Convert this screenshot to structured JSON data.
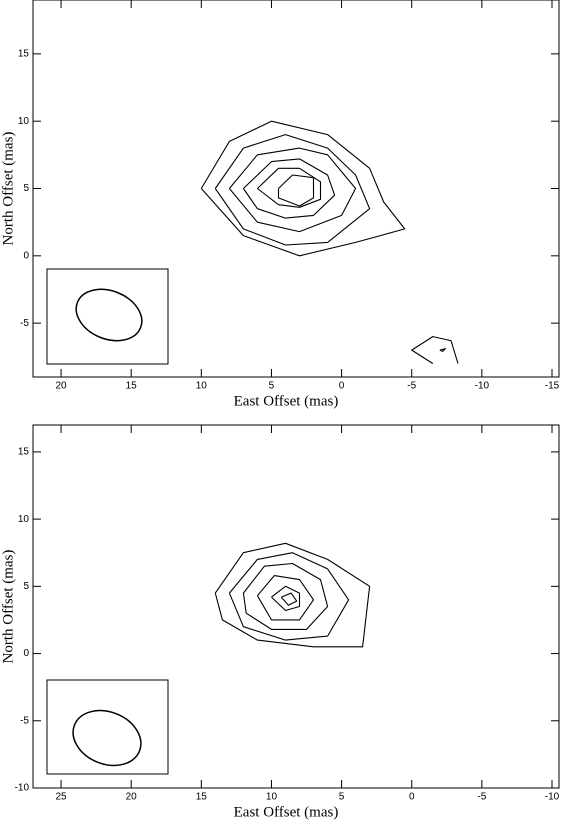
{
  "chart_data": [
    {
      "type": "contour",
      "xlabel": "East Offset (mas)",
      "ylabel": "North Offset (mas)",
      "xlim": [
        22,
        -15.5
      ],
      "ylim": [
        -9,
        19
      ],
      "xticks": [
        20,
        15,
        10,
        5,
        0,
        -5,
        -10,
        -15
      ],
      "yticks": [
        15,
        10,
        5,
        0,
        -5
      ],
      "color": "#000000",
      "contours": [
        {
          "x": [
            10,
            8,
            5,
            1,
            -2,
            -3,
            -4.5,
            -1,
            3,
            7,
            10
          ],
          "y": [
            5,
            8.5,
            10,
            9,
            6.5,
            4,
            2,
            1,
            0,
            1.5,
            5
          ]
        },
        {
          "x": [
            9,
            7,
            4,
            1,
            -1,
            -2,
            1,
            4,
            7,
            9
          ],
          "y": [
            5,
            8,
            9,
            8,
            6,
            3.5,
            1,
            0.8,
            2,
            5
          ]
        },
        {
          "x": [
            8,
            6,
            3,
            1,
            -1,
            0,
            3,
            6,
            8
          ],
          "y": [
            5,
            7.5,
            8,
            7.5,
            5,
            3,
            1.8,
            2.5,
            5
          ]
        },
        {
          "x": [
            7,
            5,
            3,
            1,
            0.5,
            2,
            4,
            6,
            7
          ],
          "y": [
            5,
            7,
            7.2,
            6,
            4.5,
            3,
            2.8,
            3.5,
            5
          ]
        },
        {
          "x": [
            6,
            4.5,
            3,
            1.5,
            1.5,
            3,
            4.5,
            6
          ],
          "y": [
            5,
            6.5,
            6.5,
            5.5,
            4.2,
            3.6,
            3.8,
            5
          ]
        },
        {
          "x": [
            4.5,
            3.5,
            2,
            2,
            3,
            4.5,
            4.5
          ],
          "y": [
            5,
            6,
            5.8,
            4.3,
            3.7,
            4.3,
            5
          ]
        },
        {
          "x": [
            -6.5,
            -5,
            -6.5,
            -7.8,
            -8.3
          ],
          "y": [
            -8,
            -7,
            -6,
            -6.3,
            -8
          ]
        },
        {
          "x": [
            -7,
            -7.4,
            -7.2,
            -7
          ],
          "y": [
            -7,
            -6.9,
            -7.1,
            -7
          ]
        }
      ]
    },
    {
      "type": "contour",
      "xlabel": "East Offset (mas)",
      "ylabel": "North Offset (mas)",
      "xlim": [
        27,
        -10.5
      ],
      "ylim": [
        -10,
        17
      ],
      "xticks": [
        25,
        20,
        15,
        10,
        5,
        0,
        -5,
        -10
      ],
      "yticks": [
        15,
        10,
        5,
        0,
        -5,
        -10
      ],
      "color": "#000000",
      "contours": [
        {
          "x": [
            14,
            12,
            9,
            6,
            3,
            3.5,
            7,
            11,
            13.5,
            14
          ],
          "y": [
            4.5,
            7.5,
            8.2,
            7,
            5,
            0.5,
            0.5,
            1,
            2.5,
            4.5
          ]
        },
        {
          "x": [
            13,
            11,
            8.5,
            6,
            4.5,
            6,
            9,
            12,
            13
          ],
          "y": [
            4.5,
            7,
            7.5,
            6.3,
            4,
            1.3,
            1,
            2,
            4.5
          ]
        },
        {
          "x": [
            12,
            10.5,
            8.5,
            6.5,
            6,
            7.5,
            10,
            11.8,
            12
          ],
          "y": [
            4.5,
            6.5,
            6.7,
            5.5,
            3.5,
            1.8,
            1.8,
            3,
            4.5
          ]
        },
        {
          "x": [
            11,
            9.8,
            8,
            7,
            8,
            10,
            11
          ],
          "y": [
            4.3,
            5.8,
            5.5,
            4,
            2.5,
            2.5,
            4.3
          ]
        },
        {
          "x": [
            10,
            9,
            8,
            8,
            9,
            10
          ],
          "y": [
            4.2,
            5,
            4.5,
            3.5,
            3.2,
            4.2
          ]
        },
        {
          "x": [
            9.3,
            8.6,
            8.2,
            8.8,
            9.3
          ],
          "y": [
            4.2,
            4.5,
            3.9,
            3.6,
            4.2
          ]
        }
      ]
    }
  ]
}
